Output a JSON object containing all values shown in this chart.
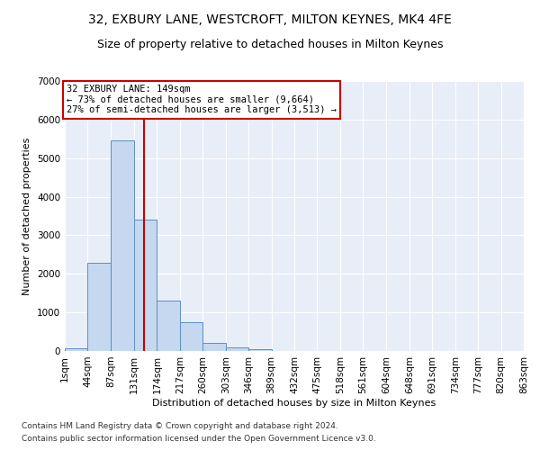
{
  "title": "32, EXBURY LANE, WESTCROFT, MILTON KEYNES, MK4 4FE",
  "subtitle": "Size of property relative to detached houses in Milton Keynes",
  "xlabel": "Distribution of detached houses by size in Milton Keynes",
  "ylabel": "Number of detached properties",
  "footnote1": "Contains HM Land Registry data © Crown copyright and database right 2024.",
  "footnote2": "Contains public sector information licensed under the Open Government Licence v3.0.",
  "annotation_line1": "32 EXBURY LANE: 149sqm",
  "annotation_line2": "← 73% of detached houses are smaller (9,664)",
  "annotation_line3": "27% of semi-detached houses are larger (3,513) →",
  "property_size": 149,
  "bar_edges": [
    1,
    44,
    87,
    131,
    174,
    217,
    260,
    303,
    346,
    389,
    432,
    475,
    518,
    561,
    604,
    648,
    691,
    734,
    777,
    820,
    863
  ],
  "bar_heights": [
    75,
    2280,
    5450,
    3400,
    1300,
    750,
    200,
    100,
    50,
    0,
    0,
    0,
    0,
    0,
    0,
    0,
    0,
    0,
    0,
    0
  ],
  "bar_color": "#c5d8f0",
  "bar_edge_color": "#5a8fc5",
  "redline_color": "#cc0000",
  "annotation_box_color": "#cc0000",
  "ylim": [
    0,
    7000
  ],
  "yticks": [
    0,
    1000,
    2000,
    3000,
    4000,
    5000,
    6000,
    7000
  ],
  "bg_color": "#e8eef8",
  "grid_color": "#ffffff",
  "title_fontsize": 10,
  "subtitle_fontsize": 9,
  "axis_fontsize": 8,
  "tick_fontsize": 7.5,
  "footnote_fontsize": 6.5
}
